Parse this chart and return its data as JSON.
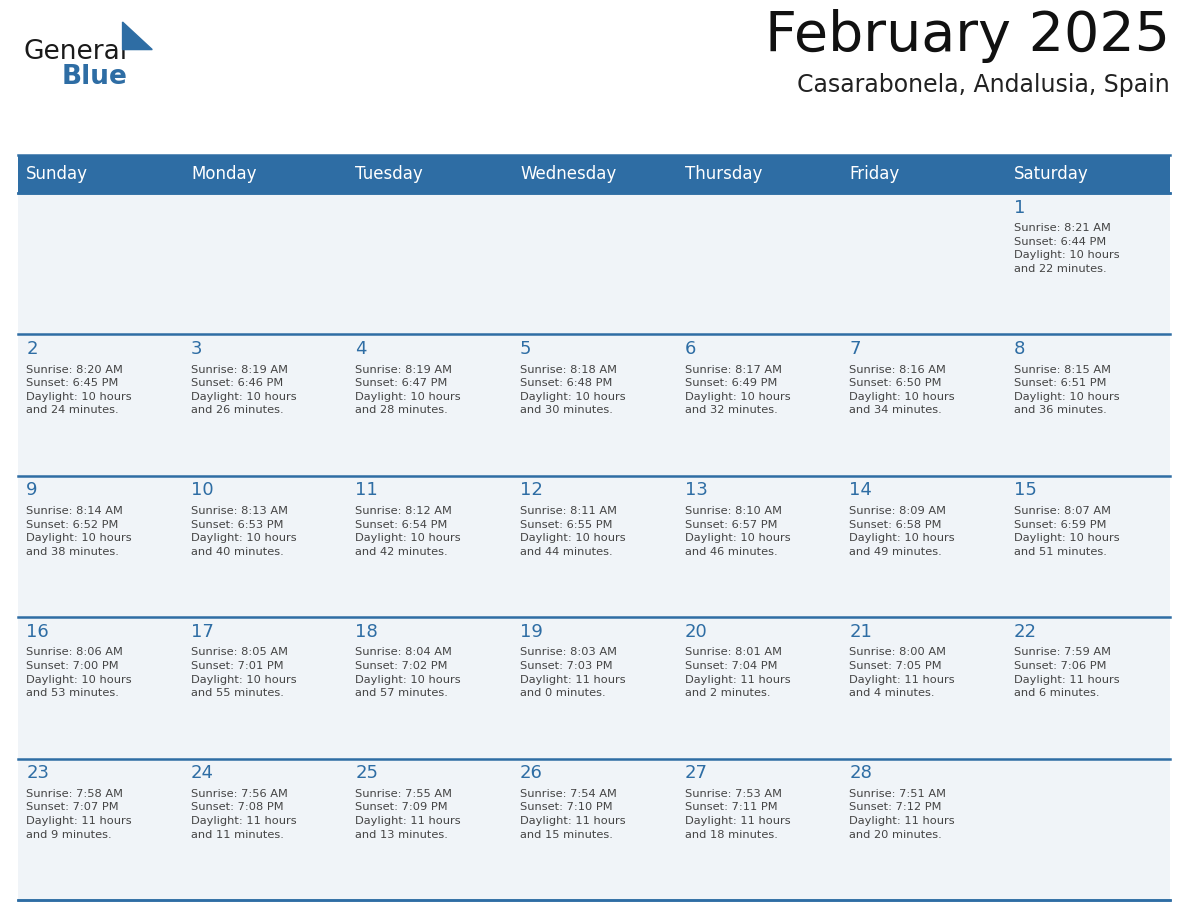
{
  "title": "February 2025",
  "subtitle": "Casarabonela, Andalusia, Spain",
  "header_bg": "#2E6DA4",
  "header_text_color": "#FFFFFF",
  "cell_bg": "#F0F4F8",
  "text_color": "#444444",
  "day_number_color": "#2E6DA4",
  "line_color": "#2E6DA4",
  "days_of_week": [
    "Sunday",
    "Monday",
    "Tuesday",
    "Wednesday",
    "Thursday",
    "Friday",
    "Saturday"
  ],
  "weeks": [
    [
      {
        "day": null,
        "info": null
      },
      {
        "day": null,
        "info": null
      },
      {
        "day": null,
        "info": null
      },
      {
        "day": null,
        "info": null
      },
      {
        "day": null,
        "info": null
      },
      {
        "day": null,
        "info": null
      },
      {
        "day": 1,
        "info": "Sunrise: 8:21 AM\nSunset: 6:44 PM\nDaylight: 10 hours\nand 22 minutes."
      }
    ],
    [
      {
        "day": 2,
        "info": "Sunrise: 8:20 AM\nSunset: 6:45 PM\nDaylight: 10 hours\nand 24 minutes."
      },
      {
        "day": 3,
        "info": "Sunrise: 8:19 AM\nSunset: 6:46 PM\nDaylight: 10 hours\nand 26 minutes."
      },
      {
        "day": 4,
        "info": "Sunrise: 8:19 AM\nSunset: 6:47 PM\nDaylight: 10 hours\nand 28 minutes."
      },
      {
        "day": 5,
        "info": "Sunrise: 8:18 AM\nSunset: 6:48 PM\nDaylight: 10 hours\nand 30 minutes."
      },
      {
        "day": 6,
        "info": "Sunrise: 8:17 AM\nSunset: 6:49 PM\nDaylight: 10 hours\nand 32 minutes."
      },
      {
        "day": 7,
        "info": "Sunrise: 8:16 AM\nSunset: 6:50 PM\nDaylight: 10 hours\nand 34 minutes."
      },
      {
        "day": 8,
        "info": "Sunrise: 8:15 AM\nSunset: 6:51 PM\nDaylight: 10 hours\nand 36 minutes."
      }
    ],
    [
      {
        "day": 9,
        "info": "Sunrise: 8:14 AM\nSunset: 6:52 PM\nDaylight: 10 hours\nand 38 minutes."
      },
      {
        "day": 10,
        "info": "Sunrise: 8:13 AM\nSunset: 6:53 PM\nDaylight: 10 hours\nand 40 minutes."
      },
      {
        "day": 11,
        "info": "Sunrise: 8:12 AM\nSunset: 6:54 PM\nDaylight: 10 hours\nand 42 minutes."
      },
      {
        "day": 12,
        "info": "Sunrise: 8:11 AM\nSunset: 6:55 PM\nDaylight: 10 hours\nand 44 minutes."
      },
      {
        "day": 13,
        "info": "Sunrise: 8:10 AM\nSunset: 6:57 PM\nDaylight: 10 hours\nand 46 minutes."
      },
      {
        "day": 14,
        "info": "Sunrise: 8:09 AM\nSunset: 6:58 PM\nDaylight: 10 hours\nand 49 minutes."
      },
      {
        "day": 15,
        "info": "Sunrise: 8:07 AM\nSunset: 6:59 PM\nDaylight: 10 hours\nand 51 minutes."
      }
    ],
    [
      {
        "day": 16,
        "info": "Sunrise: 8:06 AM\nSunset: 7:00 PM\nDaylight: 10 hours\nand 53 minutes."
      },
      {
        "day": 17,
        "info": "Sunrise: 8:05 AM\nSunset: 7:01 PM\nDaylight: 10 hours\nand 55 minutes."
      },
      {
        "day": 18,
        "info": "Sunrise: 8:04 AM\nSunset: 7:02 PM\nDaylight: 10 hours\nand 57 minutes."
      },
      {
        "day": 19,
        "info": "Sunrise: 8:03 AM\nSunset: 7:03 PM\nDaylight: 11 hours\nand 0 minutes."
      },
      {
        "day": 20,
        "info": "Sunrise: 8:01 AM\nSunset: 7:04 PM\nDaylight: 11 hours\nand 2 minutes."
      },
      {
        "day": 21,
        "info": "Sunrise: 8:00 AM\nSunset: 7:05 PM\nDaylight: 11 hours\nand 4 minutes."
      },
      {
        "day": 22,
        "info": "Sunrise: 7:59 AM\nSunset: 7:06 PM\nDaylight: 11 hours\nand 6 minutes."
      }
    ],
    [
      {
        "day": 23,
        "info": "Sunrise: 7:58 AM\nSunset: 7:07 PM\nDaylight: 11 hours\nand 9 minutes."
      },
      {
        "day": 24,
        "info": "Sunrise: 7:56 AM\nSunset: 7:08 PM\nDaylight: 11 hours\nand 11 minutes."
      },
      {
        "day": 25,
        "info": "Sunrise: 7:55 AM\nSunset: 7:09 PM\nDaylight: 11 hours\nand 13 minutes."
      },
      {
        "day": 26,
        "info": "Sunrise: 7:54 AM\nSunset: 7:10 PM\nDaylight: 11 hours\nand 15 minutes."
      },
      {
        "day": 27,
        "info": "Sunrise: 7:53 AM\nSunset: 7:11 PM\nDaylight: 11 hours\nand 18 minutes."
      },
      {
        "day": 28,
        "info": "Sunrise: 7:51 AM\nSunset: 7:12 PM\nDaylight: 11 hours\nand 20 minutes."
      },
      {
        "day": null,
        "info": null
      }
    ]
  ],
  "logo_text1": "General",
  "logo_text2": "Blue",
  "logo_color1": "#1a1a1a",
  "logo_color2": "#2E6DA4",
  "logo_triangle_color": "#2E6DA4",
  "fig_width": 11.88,
  "fig_height": 9.18,
  "dpi": 100
}
